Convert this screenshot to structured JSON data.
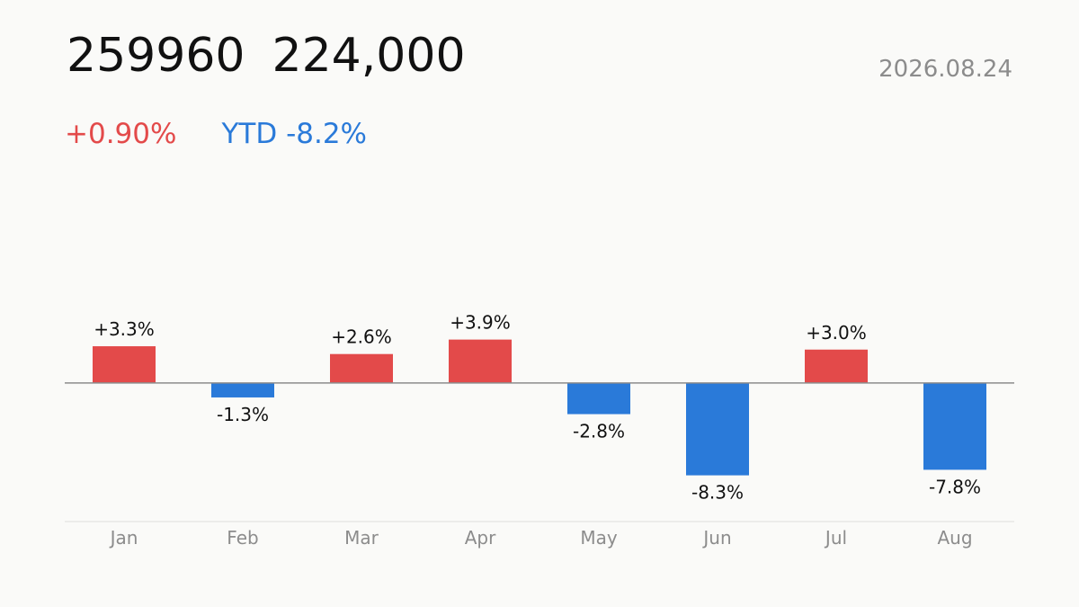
{
  "header": {
    "ticker": "259960",
    "price": "224,000",
    "date": "2026.08.24",
    "day_change": "+0.90%",
    "ytd_change": "YTD -8.2%"
  },
  "colors": {
    "up": "#e34a4a",
    "down": "#2a7ad9",
    "axis": "#8c8c8c",
    "text": "#111111"
  },
  "chart_data": {
    "type": "bar",
    "categories": [
      "Jan",
      "Feb",
      "Mar",
      "Apr",
      "May",
      "Jun",
      "Jul",
      "Aug"
    ],
    "values": [
      3.3,
      -1.3,
      2.6,
      3.9,
      -2.8,
      -8.3,
      3.0,
      -7.8
    ],
    "value_labels": [
      "+3.3%",
      "-1.3%",
      "+2.6%",
      "+3.9%",
      "-2.8%",
      "-8.3%",
      "+3.0%",
      "-7.8%"
    ],
    "ylim": [
      -11,
      13
    ],
    "grid": false,
    "legend": "none"
  }
}
